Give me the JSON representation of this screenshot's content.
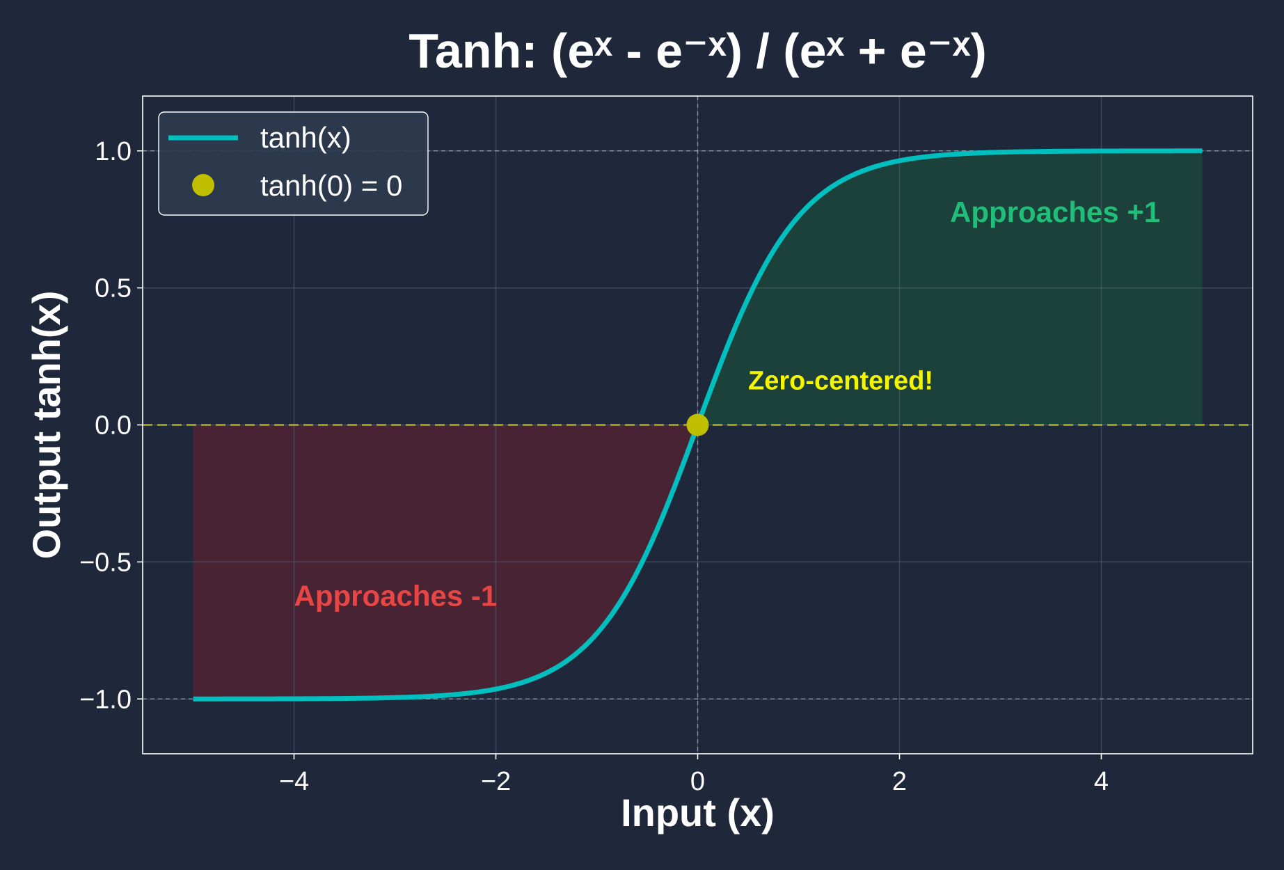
{
  "chart_data": {
    "type": "line",
    "title": "Tanh: (eˣ - e⁻ˣ) / (eˣ + e⁻ˣ)",
    "xlabel": "Input (x)",
    "ylabel": "Output tanh(x)",
    "xlim": [
      -5.5,
      5.5
    ],
    "ylim": [
      -1.2,
      1.2
    ],
    "xticks": [
      -4,
      -2,
      0,
      2,
      4
    ],
    "xtick_labels": [
      "−4",
      "−2",
      "0",
      "2",
      "4"
    ],
    "yticks": [
      -1.0,
      -0.5,
      0.0,
      0.5,
      1.0
    ],
    "ytick_labels": [
      "−1.0",
      "−0.5",
      "0.0",
      "0.5",
      "1.0"
    ],
    "grid": true,
    "function": "tanh",
    "x_domain": [
      -5,
      5
    ],
    "series": [
      {
        "name": "tanh(x)",
        "color": "#00bfbf",
        "x": [
          -5,
          -4.5,
          -4,
          -3.5,
          -3,
          -2.5,
          -2,
          -1.5,
          -1,
          -0.75,
          -0.5,
          -0.25,
          0,
          0.25,
          0.5,
          0.75,
          1,
          1.5,
          2,
          2.5,
          3,
          3.5,
          4,
          4.5,
          5
        ],
        "y": [
          -0.9999,
          -0.9998,
          -0.9993,
          -0.9982,
          -0.9951,
          -0.9866,
          -0.964,
          -0.9051,
          -0.7616,
          -0.6351,
          -0.4621,
          -0.2449,
          0,
          0.2449,
          0.4621,
          0.6351,
          0.7616,
          0.9051,
          0.964,
          0.9866,
          0.9951,
          0.9982,
          0.9993,
          0.9998,
          0.9999
        ]
      }
    ],
    "highlight_point": {
      "name": "tanh(0) = 0",
      "x": 0,
      "y": 0,
      "color": "#bfbf00"
    },
    "reference_lines": [
      {
        "orientation": "horizontal",
        "value": 0,
        "style": "dashed",
        "color": "#bfbf00"
      },
      {
        "orientation": "horizontal",
        "value": 1,
        "style": "dashed",
        "color": "#b0b8c8"
      },
      {
        "orientation": "horizontal",
        "value": -1,
        "style": "dashed",
        "color": "#b0b8c8"
      },
      {
        "orientation": "vertical",
        "value": 0,
        "style": "dashed",
        "color": "#b0b8c8"
      }
    ],
    "shaded_regions": [
      {
        "name": "negative-region",
        "x_range": [
          -5,
          0
        ],
        "color": "#8b1e2b"
      },
      {
        "name": "positive-region",
        "x_range": [
          0,
          5
        ],
        "color": "#1a6b3a"
      }
    ],
    "annotations": [
      {
        "text": "Approaches +1",
        "x": 2.5,
        "y": 0.74,
        "color": "#1fbf7a"
      },
      {
        "text": "Approaches -1",
        "x": -4,
        "y": -0.66,
        "color": "#e84545"
      },
      {
        "text": "Zero-centered!",
        "x": 0.5,
        "y": 0.13,
        "color": "#f5f500"
      }
    ],
    "legend": {
      "position": "top-left",
      "entries": [
        "tanh(x)",
        "tanh(0) = 0"
      ]
    }
  },
  "colors": {
    "background": "#1e283a",
    "axes_frame": "#ffffff",
    "grid": "#5a6478",
    "text": "#ffffff",
    "legend_bg": "#2d3a4e"
  }
}
